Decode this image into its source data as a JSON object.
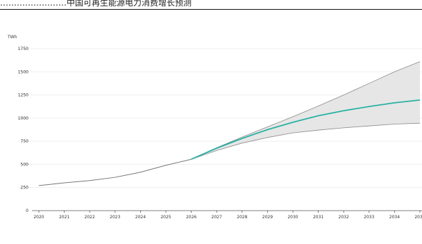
{
  "header": {
    "line": "……………………中国可再生能源电力消费增长预测"
  },
  "chart_data": {
    "type": "line",
    "title": "",
    "xlabel": "",
    "ylabel": "",
    "unit": "TWh",
    "categories": [
      "2020",
      "2021",
      "2022",
      "2023",
      "2024",
      "2025",
      "2026",
      "2027",
      "2028",
      "2029",
      "2030",
      "2031",
      "2032",
      "2033",
      "2034",
      "2035"
    ],
    "yticks": [
      0,
      250,
      500,
      750,
      1000,
      1250,
      1500,
      1750
    ],
    "ylim": [
      0,
      1750
    ],
    "grid": true,
    "legend": "none",
    "colors": {
      "historical": "#777777",
      "forecast": "#27b2a3",
      "band": "#e6e6e6",
      "band_edge": "#8a8a8a"
    },
    "series": [
      {
        "role": "historical",
        "x": [
          "2020",
          "2021",
          "2022",
          "2023",
          "2024",
          "2025",
          "2026"
        ],
        "values": [
          270,
          300,
          325,
          360,
          415,
          490,
          555
        ]
      },
      {
        "role": "forecast",
        "x": [
          "2026",
          "2027",
          "2028",
          "2029",
          "2030",
          "2031",
          "2032",
          "2033",
          "2034",
          "2035"
        ],
        "values": [
          555,
          675,
          780,
          875,
          955,
          1025,
          1080,
          1125,
          1165,
          1195
        ]
      },
      {
        "role": "upper-bound",
        "x": [
          "2026",
          "2027",
          "2028",
          "2029",
          "2030",
          "2031",
          "2032",
          "2033",
          "2034",
          "2035"
        ],
        "values": [
          555,
          680,
          795,
          905,
          1015,
          1130,
          1250,
          1375,
          1500,
          1610
        ]
      },
      {
        "role": "lower-bound",
        "x": [
          "2026",
          "2027",
          "2028",
          "2029",
          "2030",
          "2031",
          "2032",
          "2033",
          "2034",
          "2035"
        ],
        "values": [
          555,
          650,
          730,
          790,
          840,
          870,
          895,
          915,
          935,
          945
        ]
      }
    ]
  }
}
